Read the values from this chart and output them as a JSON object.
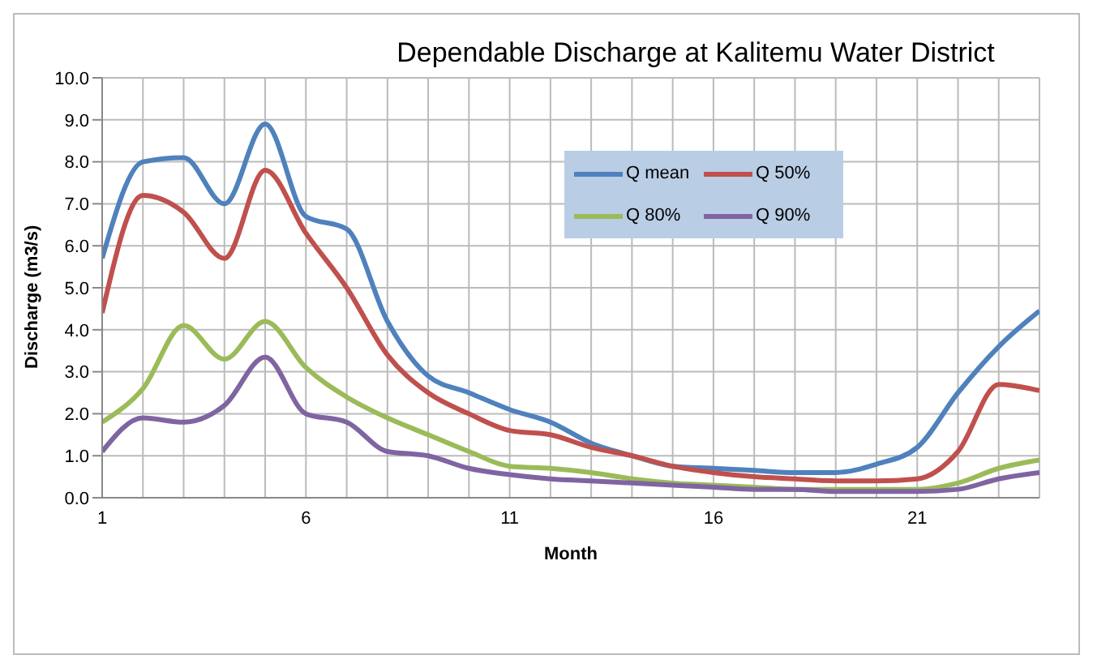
{
  "chart_data": {
    "type": "line",
    "title": "Dependable Discharge at Kalitemu Water District",
    "xlabel": "Month",
    "ylabel": "Discharge  (m3/s)",
    "x": [
      1,
      2,
      3,
      4,
      5,
      6,
      7,
      8,
      9,
      10,
      11,
      12,
      13,
      14,
      15,
      16,
      17,
      18,
      19,
      20,
      21,
      22,
      23,
      24
    ],
    "series": [
      {
        "name": "Q mean",
        "color": "#4f81bd",
        "values": [
          5.7,
          8.0,
          8.1,
          7.0,
          8.9,
          6.7,
          6.4,
          4.2,
          2.9,
          2.5,
          2.1,
          1.8,
          1.3,
          1.0,
          0.75,
          0.7,
          0.65,
          0.6,
          0.6,
          0.8,
          1.2,
          2.5,
          3.6,
          4.45
        ]
      },
      {
        "name": "Q 50%",
        "color": "#c0504d",
        "values": [
          4.4,
          7.2,
          6.8,
          5.7,
          7.8,
          6.3,
          5.0,
          3.4,
          2.5,
          2.0,
          1.6,
          1.5,
          1.2,
          1.0,
          0.75,
          0.6,
          0.5,
          0.45,
          0.4,
          0.4,
          0.45,
          1.1,
          2.7,
          2.55
        ]
      },
      {
        "name": "Q 80%",
        "color": "#9bbb59",
        "values": [
          1.8,
          2.6,
          4.1,
          3.3,
          4.2,
          3.1,
          2.4,
          1.9,
          1.5,
          1.1,
          0.75,
          0.7,
          0.6,
          0.45,
          0.35,
          0.3,
          0.25,
          0.2,
          0.2,
          0.2,
          0.2,
          0.35,
          0.7,
          0.9
        ]
      },
      {
        "name": "Q 90%",
        "color": "#8064a2",
        "values": [
          1.1,
          1.9,
          1.8,
          2.2,
          3.35,
          2.0,
          1.8,
          1.1,
          1.0,
          0.7,
          0.55,
          0.45,
          0.4,
          0.35,
          0.3,
          0.25,
          0.2,
          0.2,
          0.15,
          0.15,
          0.15,
          0.2,
          0.45,
          0.6
        ]
      }
    ],
    "xlim": [
      1,
      24
    ],
    "xticks": [
      1,
      {
        "value": 2,
        "label": null
      },
      {
        "value": 3,
        "label": null
      },
      {
        "value": 4,
        "label": null
      },
      {
        "value": 5,
        "label": null
      },
      6,
      {
        "value": 7,
        "label": null
      },
      {
        "value": 8,
        "label": null
      },
      {
        "value": 9,
        "label": null
      },
      {
        "value": 10,
        "label": null
      },
      11,
      {
        "value": 12,
        "label": null
      },
      {
        "value": 13,
        "label": null
      },
      {
        "value": 14,
        "label": null
      },
      {
        "value": 15,
        "label": null
      },
      16,
      {
        "value": 17,
        "label": null
      },
      {
        "value": 18,
        "label": null
      },
      {
        "value": 19,
        "label": null
      },
      {
        "value": 20,
        "label": null
      },
      21,
      {
        "value": 22,
        "label": null
      },
      {
        "value": 23,
        "label": null
      },
      {
        "value": 24,
        "label": null
      }
    ],
    "ylim": [
      0,
      10
    ],
    "yticks": [
      {
        "value": 0,
        "label": "0.0"
      },
      {
        "value": 1,
        "label": "1.0"
      },
      {
        "value": 2,
        "label": "2.0"
      },
      {
        "value": 3,
        "label": "3.0"
      },
      {
        "value": 4,
        "label": "4.0"
      },
      {
        "value": 5,
        "label": "5.0"
      },
      {
        "value": 6,
        "label": "6.0"
      },
      {
        "value": 7,
        "label": "7.0"
      },
      {
        "value": 8,
        "label": "8.0"
      },
      {
        "value": 9,
        "label": "9.0"
      },
      {
        "value": 10,
        "label": "10.0"
      }
    ],
    "grid": true,
    "legend": "top",
    "marker": "none",
    "line_style": "solid"
  }
}
